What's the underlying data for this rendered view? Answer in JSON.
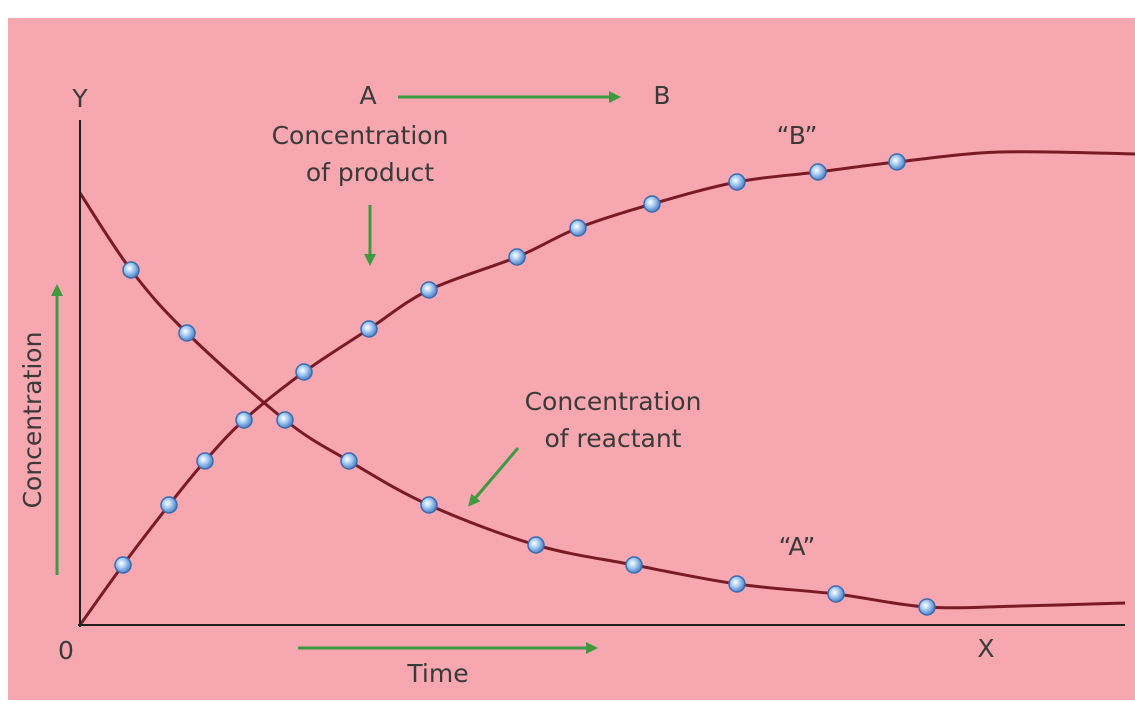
{
  "axes": {
    "y": "Y",
    "x": "X",
    "origin": "0",
    "y_title": "Concentration",
    "x_title": "Time"
  },
  "reaction": {
    "reactant": "A",
    "product": "B"
  },
  "annotations": {
    "product": [
      "Concentration",
      "of product"
    ],
    "reactant": [
      "Concentration",
      "of reactant"
    ]
  },
  "curve_labels": {
    "product": "“B”",
    "reactant": "“A”"
  }
}
